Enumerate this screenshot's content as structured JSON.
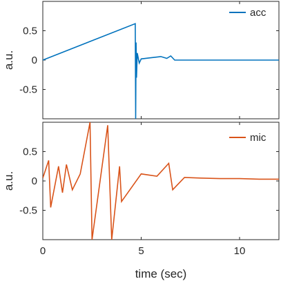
{
  "chart_data": [
    {
      "type": "line",
      "ylabel": "a.u.",
      "xlabel": "",
      "xlim": [
        0,
        12
      ],
      "ylim": [
        -1,
        1
      ],
      "x_ticks": [
        0,
        5,
        10
      ],
      "y_ticks": [
        0.5,
        0,
        -0.5
      ],
      "y_tick_labels": [
        "0.5",
        "0",
        "-0.5"
      ],
      "legend_position": "top-right",
      "grid": false,
      "series": [
        {
          "name": "acc",
          "color": "#0072BD",
          "x": [
            0,
            4.7,
            4.72,
            4.74,
            4.76,
            4.8,
            4.9,
            5.0,
            5.5,
            6.0,
            6.3,
            6.5,
            6.7,
            12
          ],
          "y": [
            0,
            0.62,
            -1.0,
            0.3,
            -0.3,
            0.12,
            -0.05,
            0.02,
            0.04,
            0.06,
            0.03,
            0.07,
            0.0,
            0
          ]
        }
      ]
    },
    {
      "type": "line",
      "ylabel": "a.u.",
      "xlabel": "time (sec)",
      "xlim": [
        0,
        12
      ],
      "ylim": [
        -1,
        1
      ],
      "x_ticks": [
        0,
        5,
        10
      ],
      "y_ticks": [
        0.5,
        0,
        -0.5
      ],
      "y_tick_labels": [
        "0.5",
        "0",
        "-0.5"
      ],
      "legend_position": "top-right",
      "grid": false,
      "series": [
        {
          "name": "mic",
          "color": "#D95319",
          "x": [
            0.0,
            0.3,
            0.4,
            0.8,
            1.0,
            1.2,
            1.5,
            1.9,
            2.4,
            2.5,
            3.3,
            3.5,
            3.9,
            4.0,
            5.0,
            5.8,
            6.4,
            6.6,
            7.2,
            8.0,
            9.0,
            10.0,
            11.0,
            12.0
          ],
          "y": [
            0.05,
            0.35,
            -0.45,
            0.25,
            -0.2,
            0.28,
            -0.15,
            0.12,
            1.0,
            -1.0,
            0.95,
            -1.0,
            0.25,
            -0.35,
            0.12,
            0.08,
            0.3,
            -0.15,
            0.06,
            0.05,
            0.04,
            0.04,
            0.03,
            0.03
          ]
        }
      ]
    }
  ]
}
